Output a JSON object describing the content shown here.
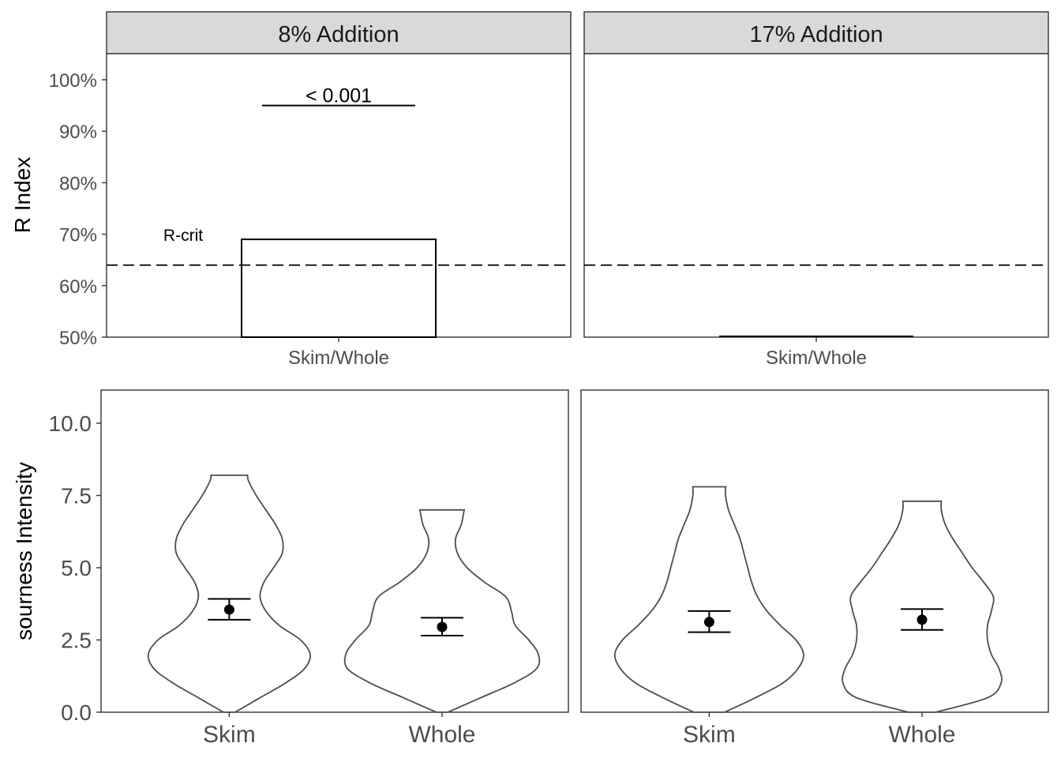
{
  "chart_data": [
    {
      "type": "bar",
      "panel": "8% Addition",
      "facet_label": "8% Addition",
      "categories": [
        "Skim/Whole"
      ],
      "values": [
        69
      ],
      "ylabel": "R Index",
      "yticks": [
        "50%",
        "60%",
        "70%",
        "80%",
        "90%",
        "100%"
      ],
      "ylim": [
        50,
        105
      ],
      "reference_line": {
        "value": 64,
        "label": "R-crit",
        "style": "dashed"
      },
      "significance": {
        "label": "< 0.001",
        "y": 95
      },
      "grid": false
    },
    {
      "type": "bar",
      "panel": "17% Addition",
      "facet_label": "17% Addition",
      "categories": [
        "Skim/Whole"
      ],
      "values": [
        50
      ],
      "ylim": [
        50,
        105
      ],
      "reference_line": {
        "value": 64,
        "style": "dashed"
      },
      "grid": false
    },
    {
      "type": "violin",
      "panel": "8% Addition",
      "categories": [
        "Skim",
        "Whole"
      ],
      "ylabel": "sourness Intensity",
      "yticks": [
        "0.0",
        "2.5",
        "5.0",
        "7.5",
        "10.0"
      ],
      "ylim": [
        0,
        11
      ],
      "grid": false,
      "series": [
        {
          "category": "Skim",
          "mean": 3.55,
          "ci_low": 3.2,
          "ci_high": 3.92,
          "range": [
            0,
            8.2
          ],
          "density_width": [
            [
              0,
              0.06
            ],
            [
              0.5,
              0.32
            ],
            [
              1.0,
              0.58
            ],
            [
              1.5,
              0.78
            ],
            [
              2.0,
              0.84
            ],
            [
              2.5,
              0.74
            ],
            [
              3.0,
              0.52
            ],
            [
              3.5,
              0.38
            ],
            [
              4.0,
              0.32
            ],
            [
              4.5,
              0.36
            ],
            [
              5.0,
              0.46
            ],
            [
              5.5,
              0.55
            ],
            [
              6.0,
              0.55
            ],
            [
              6.5,
              0.48
            ],
            [
              7.0,
              0.38
            ],
            [
              7.5,
              0.28
            ],
            [
              8.0,
              0.2
            ],
            [
              8.2,
              0.19
            ]
          ]
        },
        {
          "category": "Whole",
          "mean": 2.95,
          "ci_low": 2.65,
          "ci_high": 3.27,
          "range": [
            0,
            7.0
          ],
          "density_width": [
            [
              0,
              0.06
            ],
            [
              0.5,
              0.4
            ],
            [
              1.0,
              0.74
            ],
            [
              1.5,
              0.98
            ],
            [
              2.0,
              1.0
            ],
            [
              2.5,
              0.9
            ],
            [
              3.0,
              0.76
            ],
            [
              3.5,
              0.72
            ],
            [
              4.0,
              0.66
            ],
            [
              4.5,
              0.44
            ],
            [
              5.0,
              0.26
            ],
            [
              5.5,
              0.16
            ],
            [
              6.0,
              0.14
            ],
            [
              6.5,
              0.2
            ],
            [
              7.0,
              0.23
            ]
          ]
        }
      ]
    },
    {
      "type": "violin",
      "panel": "17% Addition",
      "categories": [
        "Skim",
        "Whole"
      ],
      "ylim": [
        0,
        11
      ],
      "grid": false,
      "series": [
        {
          "category": "Skim",
          "mean": 3.12,
          "ci_low": 2.77,
          "ci_high": 3.5,
          "range": [
            0,
            7.8
          ],
          "density_width": [
            [
              0,
              0.16
            ],
            [
              0.5,
              0.48
            ],
            [
              1.0,
              0.76
            ],
            [
              1.5,
              0.92
            ],
            [
              2.0,
              0.98
            ],
            [
              2.5,
              0.9
            ],
            [
              3.0,
              0.74
            ],
            [
              3.5,
              0.6
            ],
            [
              4.0,
              0.5
            ],
            [
              4.5,
              0.44
            ],
            [
              5.0,
              0.4
            ],
            [
              5.5,
              0.36
            ],
            [
              6.0,
              0.32
            ],
            [
              6.5,
              0.26
            ],
            [
              7.0,
              0.2
            ],
            [
              7.5,
              0.17
            ],
            [
              7.8,
              0.17
            ]
          ]
        },
        {
          "category": "Whole",
          "mean": 3.2,
          "ci_low": 2.85,
          "ci_high": 3.57,
          "range": [
            0,
            7.3
          ],
          "density_width": [
            [
              0,
              0.14
            ],
            [
              0.5,
              0.68
            ],
            [
              1.0,
              0.82
            ],
            [
              1.5,
              0.8
            ],
            [
              2.0,
              0.72
            ],
            [
              2.5,
              0.68
            ],
            [
              3.0,
              0.68
            ],
            [
              3.5,
              0.72
            ],
            [
              4.0,
              0.74
            ],
            [
              4.5,
              0.64
            ],
            [
              5.0,
              0.52
            ],
            [
              5.5,
              0.42
            ],
            [
              6.0,
              0.32
            ],
            [
              6.5,
              0.24
            ],
            [
              7.0,
              0.2
            ],
            [
              7.3,
              0.2
            ]
          ]
        }
      ]
    }
  ]
}
